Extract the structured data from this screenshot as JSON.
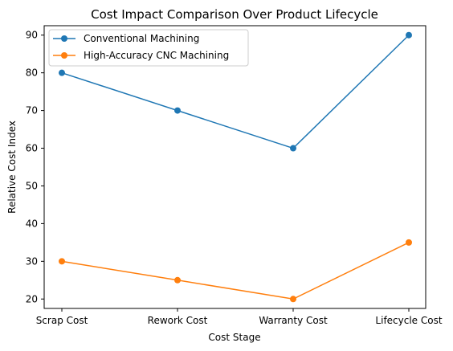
{
  "chart_data": {
    "type": "line",
    "title": "Cost Impact Comparison Over Product Lifecycle",
    "xlabel": "Cost Stage",
    "ylabel": "Relative Cost Index",
    "categories": [
      "Scrap Cost",
      "Rework Cost",
      "Warranty Cost",
      "Lifecycle Cost"
    ],
    "ylim": [
      17.5,
      92.5
    ],
    "yticks": [
      20,
      30,
      40,
      50,
      60,
      70,
      80,
      90
    ],
    "grid": false,
    "legend_position": "top-left",
    "series": [
      {
        "name": "Conventional Machining",
        "values": [
          80,
          70,
          60,
          90
        ],
        "color": "#1f77b4"
      },
      {
        "name": "High-Accuracy CNC Machining",
        "values": [
          30,
          25,
          20,
          35
        ],
        "color": "#ff7f0e"
      }
    ]
  }
}
